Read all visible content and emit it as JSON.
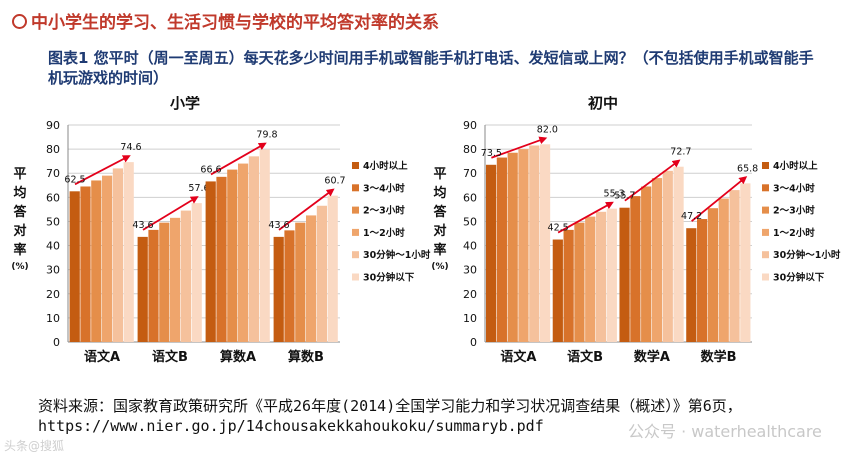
{
  "heading": "中小学生的学习、生活习惯与学校的平均答对率的关系",
  "caption": "图表1  您平时（周一至周五）每天花多少时间用手机或智能手机打电话、发短信或上网？（不包括使用手机或智能手机玩游戏的时间）",
  "source": "资料来源：国家教育政策研究所《平成26年度(2014)全国学习能力和学习状况调查结果（概述）》第6页，https://www.nier.go.jp/14chousakekkahoukoku/summaryb.pdf",
  "watermark_right": "公众号 · waterhealthcare",
  "watermark_left": "头条@搜狐",
  "colors": [
    "#c45c11",
    "#d8722a",
    "#e58e4a",
    "#efa56c",
    "#f5c19c",
    "#fad9c3"
  ],
  "arrow_color": "#e3001b",
  "chart_data": [
    {
      "type": "bar",
      "title": "小学",
      "ylabel": "平均答对率(%)",
      "ylim": [
        0,
        90
      ],
      "yticks": [
        0,
        10,
        20,
        30,
        40,
        50,
        60,
        70,
        80,
        90
      ],
      "grid": true,
      "legend_position": "right",
      "categories": [
        "语文A",
        "语文B",
        "算数A",
        "算数B"
      ],
      "series": [
        {
          "name": "4小时以上",
          "values": [
            62.5,
            43.6,
            66.6,
            43.6
          ]
        },
        {
          "name": "3～4小时",
          "values": [
            64.5,
            46.5,
            68.5,
            46.3
          ]
        },
        {
          "name": "2～3小时",
          "values": [
            67.0,
            49.5,
            71.5,
            49.5
          ]
        },
        {
          "name": "1～2小时",
          "values": [
            69.0,
            51.5,
            74.0,
            52.5
          ]
        },
        {
          "name": "30分钟～1小时",
          "values": [
            72.0,
            54.5,
            77.0,
            56.5
          ]
        },
        {
          "name": "30分钟以下",
          "values": [
            74.6,
            57.6,
            79.8,
            60.7
          ]
        }
      ],
      "data_labels": [
        {
          "category": "语文A",
          "low": "62.5",
          "high": "74.6"
        },
        {
          "category": "语文B",
          "low": "43.6",
          "high": "57.6"
        },
        {
          "category": "算数A",
          "low": "66.6",
          "high": "79.8"
        },
        {
          "category": "算数B",
          "low": "43.6",
          "high": "60.7"
        }
      ]
    },
    {
      "type": "bar",
      "title": "初中",
      "ylabel": "平均答对率(%)",
      "ylim": [
        0,
        90
      ],
      "yticks": [
        0,
        10,
        20,
        30,
        40,
        50,
        60,
        70,
        80,
        90
      ],
      "grid": true,
      "legend_position": "right",
      "categories": [
        "语文A",
        "语文B",
        "数学A",
        "数学B"
      ],
      "series": [
        {
          "name": "4小时以上",
          "values": [
            73.5,
            42.5,
            55.7,
            47.2
          ]
        },
        {
          "name": "3～4小时",
          "values": [
            76.5,
            46.5,
            60.5,
            51.0
          ]
        },
        {
          "name": "2～3小时",
          "values": [
            78.5,
            49.5,
            64.5,
            55.5
          ]
        },
        {
          "name": "1～2小时",
          "values": [
            80.0,
            52.0,
            68.0,
            59.5
          ]
        },
        {
          "name": "30分钟～1小时",
          "values": [
            81.5,
            54.0,
            71.0,
            63.0
          ]
        },
        {
          "name": "30分钟以下",
          "values": [
            82.0,
            55.3,
            72.7,
            65.8
          ]
        }
      ],
      "data_labels": [
        {
          "category": "语文A",
          "low": "73.5",
          "high": "82.0"
        },
        {
          "category": "语文B",
          "low": "42.5",
          "high": "55.3"
        },
        {
          "category": "数学A",
          "low": "55.7",
          "high": "72.7"
        },
        {
          "category": "数学B",
          "low": "47.2",
          "high": "65.8"
        }
      ]
    }
  ]
}
